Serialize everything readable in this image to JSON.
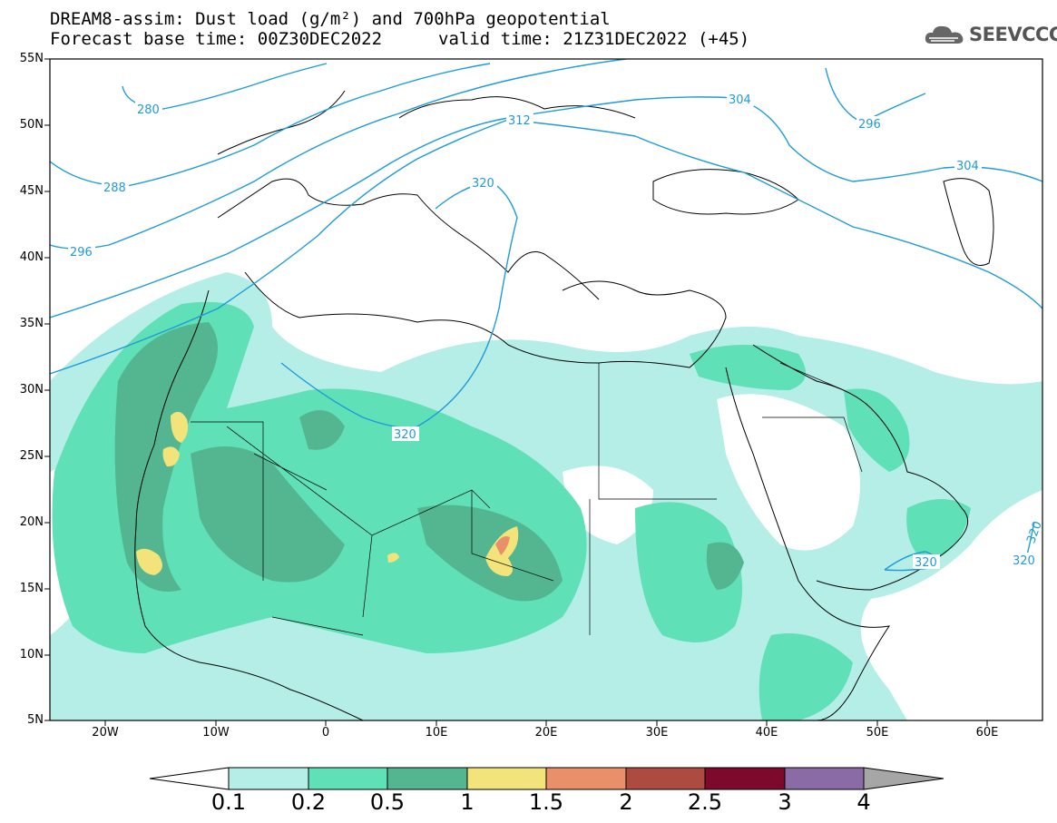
{
  "header": {
    "title_line1": "DREAM8-assim: Dust load (g/m²) and 700hPa geopotential",
    "title_line2": "Forecast base time: 00Z30DEC2022",
    "valid_time": "valid time: 21Z31DEC2022 (+45)",
    "logo_text": "SEEVCCC"
  },
  "map": {
    "lat_labels": [
      "55N",
      "50N",
      "45N",
      "40N",
      "35N",
      "30N",
      "25N",
      "20N",
      "15N",
      "10N",
      "5N"
    ],
    "lon_labels": [
      "20W",
      "10W",
      "0",
      "10E",
      "20E",
      "30E",
      "40E",
      "50E",
      "60E"
    ],
    "contour_labels": [
      "280",
      "288",
      "296",
      "304",
      "304",
      "296",
      "312",
      "320",
      "320",
      "320",
      "320",
      "320"
    ],
    "contour_color": "#1f9bd8"
  },
  "colorbar": {
    "labels": [
      "0.1",
      "0.2",
      "0.5",
      "1",
      "1.5",
      "2",
      "2.5",
      "3",
      "4"
    ],
    "colors": [
      "#ffffff",
      "#b4eee6",
      "#5fe0b6",
      "#54b690",
      "#f2e47a",
      "#e9906a",
      "#ae4b40",
      "#7d0a2c",
      "#8b6ba6",
      "#a6a6a6"
    ]
  }
}
